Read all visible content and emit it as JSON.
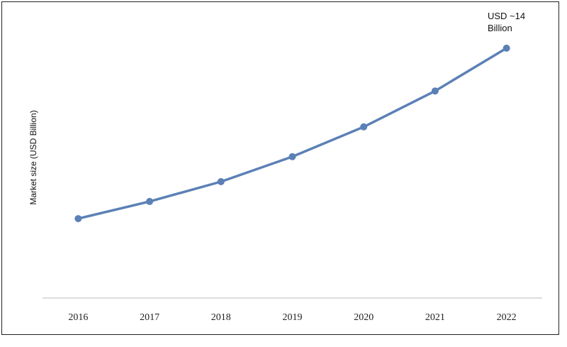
{
  "chart_data": {
    "type": "line",
    "y_label": "Market size (USD Billion)",
    "annotation": "USD ~14 Billion",
    "categories": [
      "2016",
      "2017",
      "2018",
      "2019",
      "2020",
      "2021",
      "2022"
    ],
    "series": [
      {
        "name": "Market size",
        "color": "#5b80b6",
        "values": [
          4.45,
          5.41,
          6.52,
          7.92,
          9.59,
          11.6,
          14
        ]
      }
    ],
    "ylim": [
      0,
      16.3
    ]
  }
}
